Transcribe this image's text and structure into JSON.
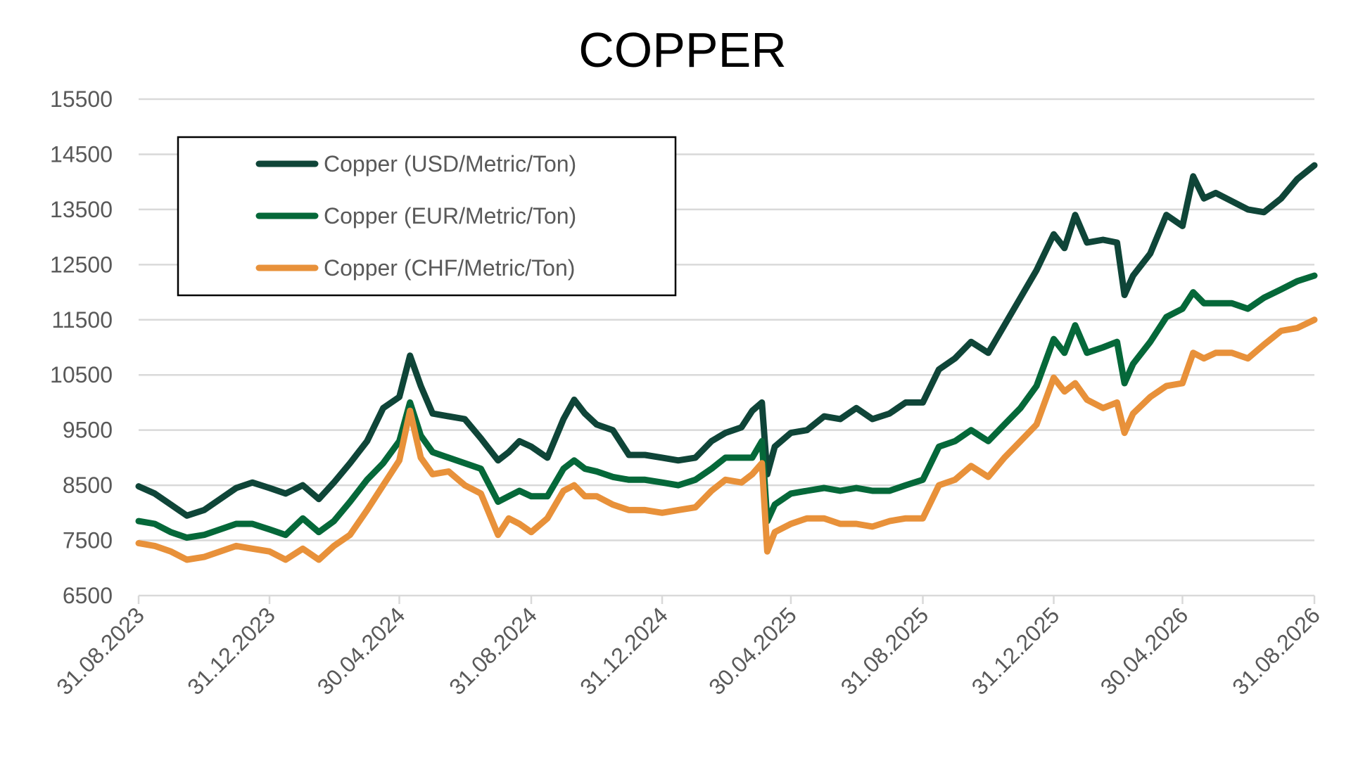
{
  "chart_data": {
    "type": "line",
    "title": "COPPER",
    "xlabel": "",
    "ylabel": "",
    "ylim": [
      6500,
      15500
    ],
    "yticks": [
      6500,
      7500,
      8500,
      9500,
      10500,
      11500,
      12500,
      13500,
      14500,
      15500
    ],
    "xlim": [
      "2023-08-31",
      "2026-08-31"
    ],
    "x_tick_labels": [
      "31.08.2023",
      "31.12.2023",
      "30.04.2024",
      "31.08.2024",
      "31.12.2024",
      "30.04.2025",
      "31.08.2025",
      "31.12.2025",
      "30.04.2026",
      "31.08.2026"
    ],
    "x_tick_dates": [
      "2023-08-31",
      "2023-12-31",
      "2024-04-30",
      "2024-08-31",
      "2024-12-31",
      "2025-04-30",
      "2025-08-31",
      "2025-12-31",
      "2026-04-30",
      "2026-08-31"
    ],
    "grid": true,
    "legend": "top-left",
    "x": [
      "2023-08-31",
      "2023-09-15",
      "2023-09-30",
      "2023-10-15",
      "2023-10-31",
      "2023-11-15",
      "2023-11-30",
      "2023-12-15",
      "2023-12-31",
      "2024-01-15",
      "2024-01-31",
      "2024-02-15",
      "2024-02-29",
      "2024-03-15",
      "2024-03-31",
      "2024-04-15",
      "2024-04-30",
      "2024-05-10",
      "2024-05-20",
      "2024-05-31",
      "2024-06-15",
      "2024-06-30",
      "2024-07-15",
      "2024-07-31",
      "2024-08-10",
      "2024-08-20",
      "2024-08-31",
      "2024-09-15",
      "2024-09-30",
      "2024-10-10",
      "2024-10-20",
      "2024-10-31",
      "2024-11-15",
      "2024-11-30",
      "2024-12-15",
      "2024-12-31",
      "2025-01-15",
      "2025-01-31",
      "2025-02-15",
      "2025-02-28",
      "2025-03-15",
      "2025-03-25",
      "2025-04-03",
      "2025-04-08",
      "2025-04-15",
      "2025-04-30",
      "2025-05-15",
      "2025-05-31",
      "2025-06-15",
      "2025-06-30",
      "2025-07-15",
      "2025-07-31",
      "2025-08-15",
      "2025-08-31",
      "2025-09-15",
      "2025-09-30",
      "2025-10-15",
      "2025-10-31",
      "2025-11-15",
      "2025-11-30",
      "2025-12-15",
      "2025-12-31",
      "2026-01-10",
      "2026-01-20",
      "2026-01-31",
      "2026-02-15",
      "2026-02-28",
      "2026-03-07",
      "2026-03-15",
      "2026-03-31",
      "2026-04-15",
      "2026-04-30",
      "2026-05-10",
      "2026-05-20",
      "2026-05-31",
      "2026-06-15",
      "2026-06-30",
      "2026-07-15",
      "2026-07-31",
      "2026-08-15",
      "2026-08-31"
    ],
    "series": [
      {
        "name": "Copper (USD/Metric/Ton)",
        "color": "#0f4538",
        "values": [
          8480,
          8350,
          8150,
          7950,
          8050,
          8250,
          8450,
          8550,
          8450,
          8350,
          8500,
          8250,
          8550,
          8900,
          9300,
          9900,
          10100,
          10850,
          10300,
          9800,
          9750,
          9700,
          9350,
          8950,
          9100,
          9300,
          9200,
          9000,
          9700,
          10050,
          9800,
          9600,
          9500,
          9050,
          9050,
          9000,
          8950,
          9000,
          9300,
          9450,
          9550,
          9850,
          10000,
          8700,
          9200,
          9450,
          9500,
          9750,
          9700,
          9900,
          9700,
          9800,
          10000,
          10000,
          10600,
          10800,
          11100,
          10900,
          11400,
          11900,
          12400,
          13050,
          12800,
          13400,
          12900,
          12950,
          12900,
          11950,
          12300,
          12700,
          13400,
          13200,
          14100,
          13700,
          13800,
          13650,
          13500,
          13450,
          13700,
          14050,
          14300
        ]
      },
      {
        "name": "Copper (EUR/Metric/Ton)",
        "color": "#056839",
        "values": [
          7850,
          7800,
          7650,
          7550,
          7600,
          7700,
          7800,
          7800,
          7700,
          7600,
          7900,
          7650,
          7850,
          8200,
          8600,
          8900,
          9300,
          10000,
          9400,
          9100,
          9000,
          8900,
          8800,
          8200,
          8300,
          8400,
          8300,
          8300,
          8800,
          8950,
          8800,
          8750,
          8650,
          8600,
          8600,
          8550,
          8500,
          8600,
          8800,
          9000,
          9000,
          9000,
          9300,
          7850,
          8150,
          8350,
          8400,
          8450,
          8400,
          8450,
          8400,
          8400,
          8500,
          8600,
          9200,
          9300,
          9500,
          9300,
          9600,
          9900,
          10300,
          11150,
          10900,
          11400,
          10900,
          11000,
          11100,
          10350,
          10700,
          11100,
          11550,
          11700,
          12000,
          11800,
          11800,
          11800,
          11700,
          11900,
          12050,
          12200,
          12300
        ]
      },
      {
        "name": "Copper (CHF/Metric/Ton)",
        "color": "#e8913a",
        "values": [
          7450,
          7400,
          7300,
          7150,
          7200,
          7300,
          7400,
          7350,
          7300,
          7150,
          7350,
          7150,
          7400,
          7600,
          8050,
          8500,
          8950,
          9850,
          9000,
          8700,
          8750,
          8500,
          8350,
          7600,
          7900,
          7800,
          7650,
          7900,
          8400,
          8500,
          8300,
          8300,
          8150,
          8050,
          8050,
          8000,
          8050,
          8100,
          8400,
          8600,
          8550,
          8700,
          8900,
          7300,
          7650,
          7800,
          7900,
          7900,
          7800,
          7800,
          7750,
          7850,
          7900,
          7900,
          8500,
          8600,
          8850,
          8650,
          9000,
          9300,
          9600,
          10450,
          10200,
          10350,
          10050,
          9900,
          10000,
          9450,
          9800,
          10100,
          10300,
          10350,
          10900,
          10800,
          10900,
          10900,
          10800,
          11050,
          11300,
          11350,
          11500
        ]
      }
    ]
  }
}
